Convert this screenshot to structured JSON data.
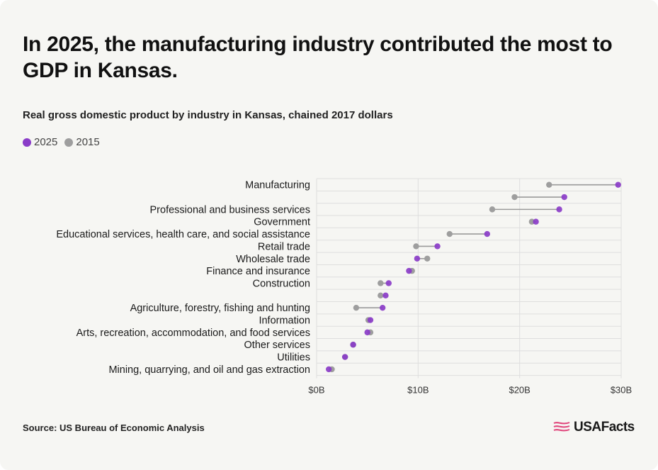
{
  "title": "In 2025, the manufacturing industry contributed the most to GDP in Kansas.",
  "subtitle": "Real gross domestic product by industry in Kansas, chained 2017 dollars",
  "source": "Source: US Bureau of Economic Analysis",
  "logo_text": "USAFacts",
  "colors": {
    "series_2025": "#8a3cc8",
    "series_2015": "#9e9e9e",
    "connector": "#9a9a9a",
    "grid": "#dedede",
    "background": "#f6f6f3"
  },
  "chart_data": {
    "type": "dumbbell",
    "x_unit": "billions of chained 2017 dollars",
    "xlim": [
      0,
      30
    ],
    "x_ticks": [
      0,
      10,
      20,
      30
    ],
    "x_tick_labels": [
      "$0B",
      "$10B",
      "$20B",
      "$30B"
    ],
    "grid": true,
    "legend_position": "top-left",
    "series": [
      {
        "name": "2025",
        "color": "#8a3cc8"
      },
      {
        "name": "2015",
        "color": "#9e9e9e"
      }
    ],
    "categories": [
      {
        "label": "Manufacturing",
        "v2025": 29.7,
        "v2015": 22.9
      },
      {
        "label": "",
        "v2025": 24.4,
        "v2015": 19.5
      },
      {
        "label": "Professional and business services",
        "v2025": 23.9,
        "v2015": 17.3
      },
      {
        "label": "Government",
        "v2025": 21.6,
        "v2015": 21.2
      },
      {
        "label": "Educational services, health care, and social assistance",
        "v2025": 16.8,
        "v2015": 13.1
      },
      {
        "label": "Retail trade",
        "v2025": 11.9,
        "v2015": 9.8
      },
      {
        "label": "Wholesale trade",
        "v2025": 9.9,
        "v2015": 10.9
      },
      {
        "label": "Finance and insurance",
        "v2025": 9.1,
        "v2015": 9.4
      },
      {
        "label": "Construction",
        "v2025": 7.1,
        "v2015": 6.3
      },
      {
        "label": "",
        "v2025": 6.8,
        "v2015": 6.3
      },
      {
        "label": "Agriculture, forestry, fishing and hunting",
        "v2025": 6.5,
        "v2015": 3.9
      },
      {
        "label": "Information",
        "v2025": 5.3,
        "v2015": 5.1
      },
      {
        "label": "Arts, recreation, accommodation, and food services",
        "v2025": 5.0,
        "v2015": 5.3
      },
      {
        "label": "Other services",
        "v2025": 3.6,
        "v2015": 3.6
      },
      {
        "label": "Utilities",
        "v2025": 2.8,
        "v2015": 2.8
      },
      {
        "label": "Mining, quarrying, and oil and gas extraction",
        "v2025": 1.2,
        "v2015": 1.5
      }
    ]
  }
}
